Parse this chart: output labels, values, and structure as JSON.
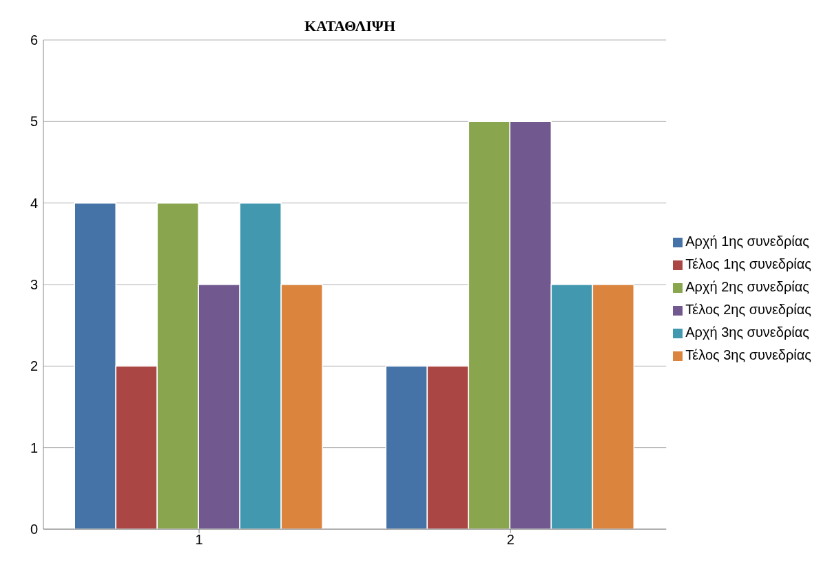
{
  "chart_data": {
    "type": "bar",
    "title": "ΚΑΤΑΘΛΙΨΗ",
    "categories": [
      "1",
      "2"
    ],
    "series": [
      {
        "name": "Αρχή 1ης συνεδρίας",
        "color": "#4572a7",
        "values": [
          4,
          2
        ]
      },
      {
        "name": "Τέλος 1ης συνεδρίας",
        "color": "#aa4643",
        "values": [
          2,
          2
        ]
      },
      {
        "name": "Αρχή 2ης συνεδρίας",
        "color": "#89a54e",
        "values": [
          4,
          5
        ]
      },
      {
        "name": "Τέλος 2ης συνεδρίας",
        "color": "#71588f",
        "values": [
          3,
          5
        ]
      },
      {
        "name": "Αρχή 3ης συνεδρίας",
        "color": "#4198af",
        "values": [
          4,
          3
        ]
      },
      {
        "name": "Τέλος 3ης συνεδρίας",
        "color": "#db843d",
        "values": [
          3,
          3
        ]
      }
    ],
    "ylim": [
      0,
      6
    ],
    "yticks": [
      0,
      1,
      2,
      3,
      4,
      5,
      6
    ],
    "grid": "y",
    "legend": "right"
  }
}
